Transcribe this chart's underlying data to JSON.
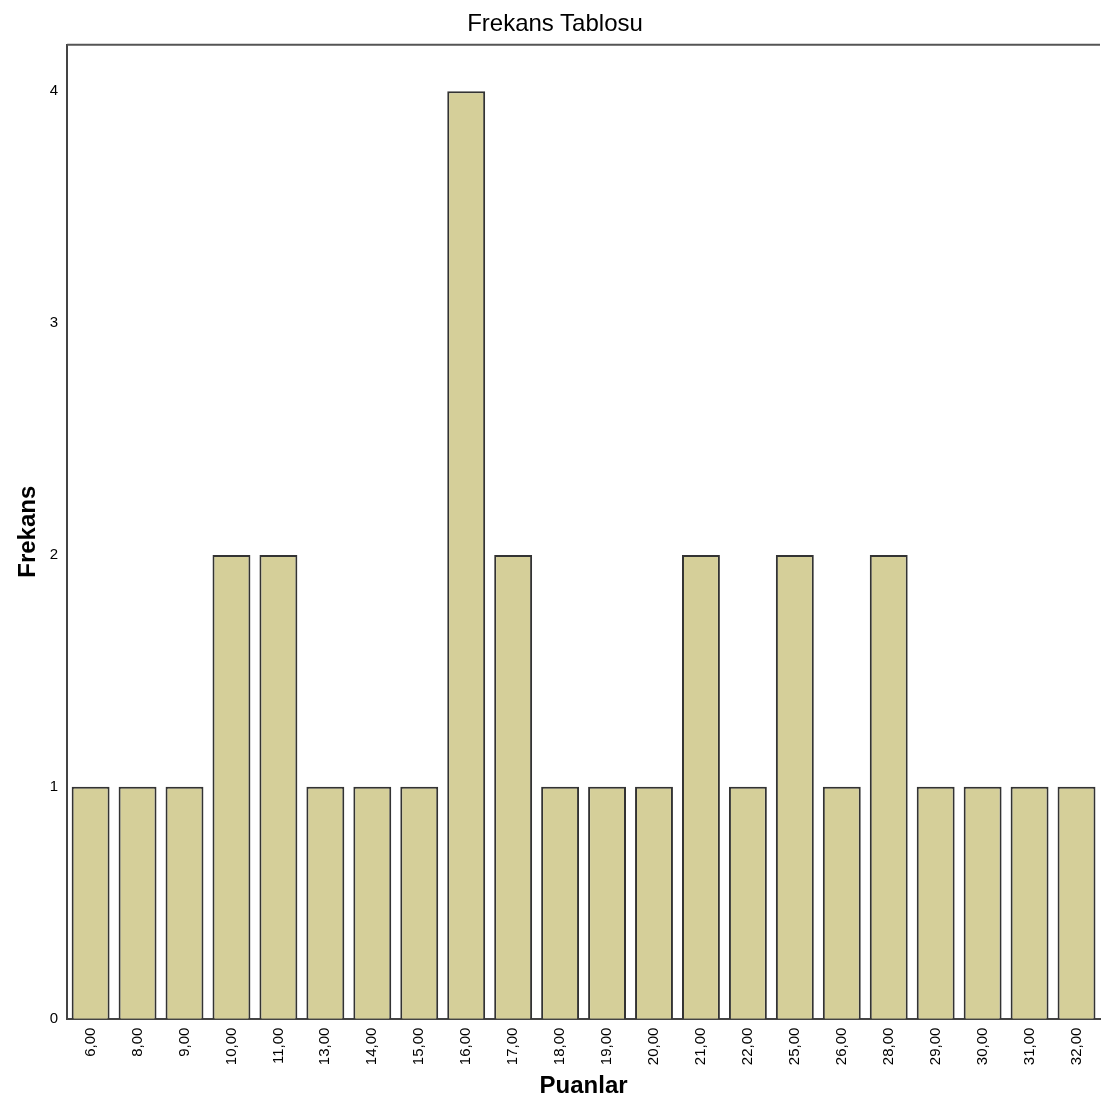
{
  "chart_data": {
    "type": "bar",
    "title": "Frekans Tablosu",
    "xlabel": "Puanlar",
    "ylabel": "Frekans",
    "categories": [
      "6,00",
      "8,00",
      "9,00",
      "10,00",
      "11,00",
      "13,00",
      "14,00",
      "15,00",
      "16,00",
      "17,00",
      "18,00",
      "19,00",
      "20,00",
      "21,00",
      "22,00",
      "25,00",
      "26,00",
      "28,00",
      "29,00",
      "30,00",
      "31,00",
      "32,00"
    ],
    "values": [
      1,
      1,
      1,
      2,
      2,
      1,
      1,
      1,
      4,
      2,
      1,
      1,
      1,
      2,
      1,
      2,
      1,
      2,
      1,
      1,
      1,
      1
    ],
    "color": "#d5cf99",
    "ylim": [
      0,
      4.2
    ],
    "yticks": [
      0,
      1,
      2,
      3,
      4
    ],
    "grid": false,
    "legend": false
  }
}
